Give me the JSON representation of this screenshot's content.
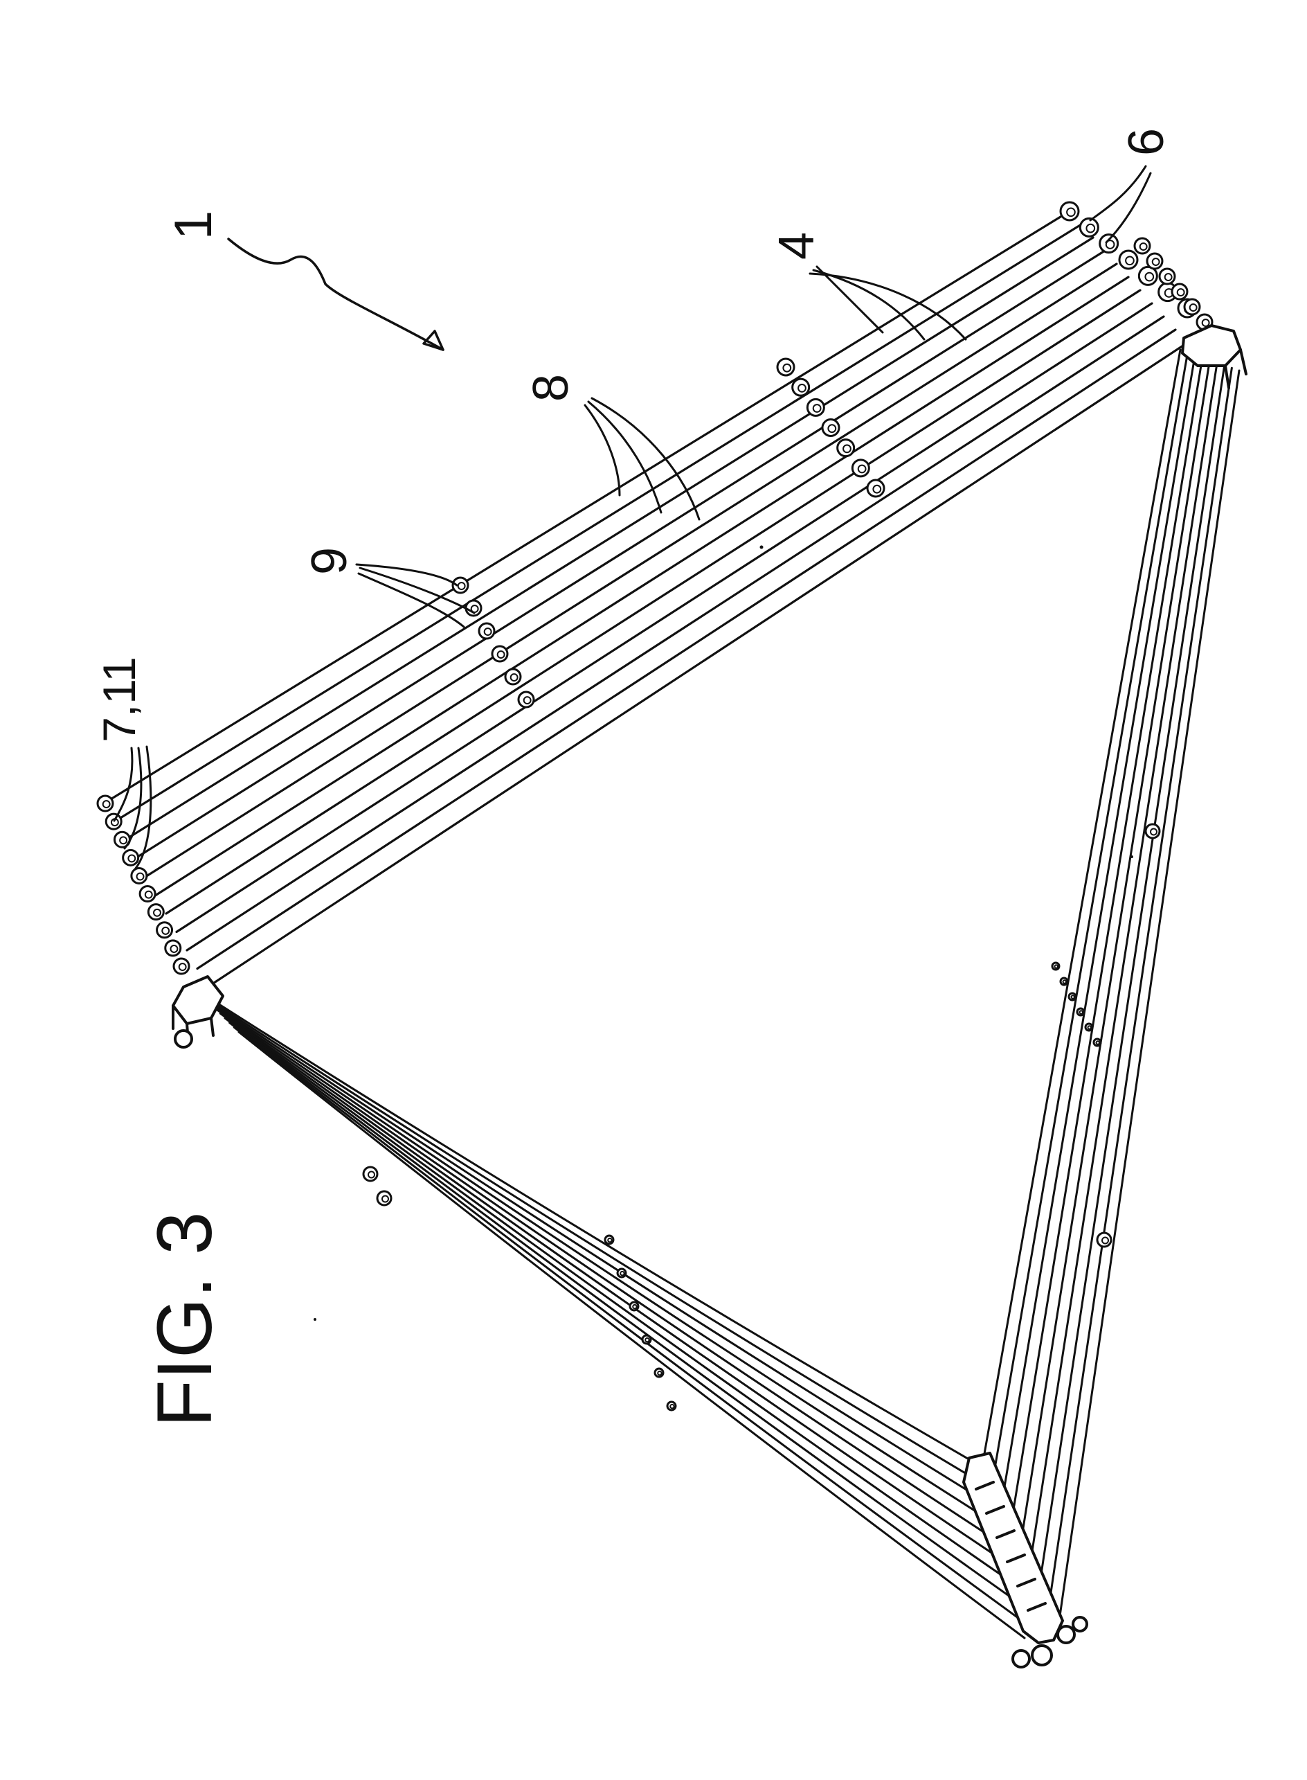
{
  "figure": {
    "title": "FIG. 3",
    "labels": {
      "ref_1": "1",
      "ref_4": "4",
      "ref_6": "6",
      "ref_8": "8",
      "ref_9": "9",
      "ref_7_11": "7,11"
    }
  },
  "colors": {
    "ink": "#111111",
    "paper": "#ffffff"
  }
}
